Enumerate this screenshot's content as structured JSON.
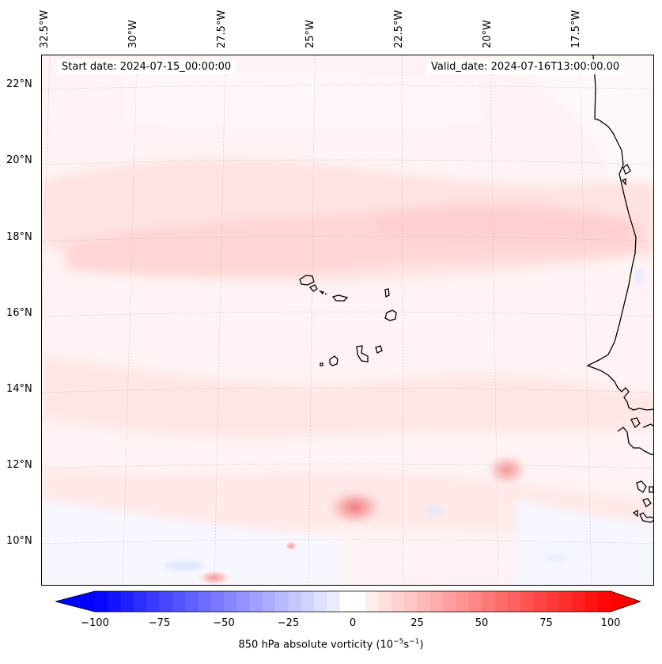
{
  "map": {
    "start_date": "Start date: 2024-07-15_00:00:00",
    "valid_date": "Valid_date: 2024-07-16T13:00:00.00",
    "lon_labels": [
      "32.5°W",
      "30°W",
      "27.5°W",
      "25°W",
      "22.5°W",
      "20°W",
      "17.5°W"
    ],
    "lat_labels": [
      "22°N",
      "20°N",
      "18°N",
      "16°N",
      "14°N",
      "12°N",
      "10°N"
    ]
  },
  "colorbar": {
    "ticks": [
      "−100",
      "−75",
      "−50",
      "−25",
      "0",
      "25",
      "50",
      "75",
      "100"
    ],
    "min": -100,
    "max": 100,
    "label_main": "850 hPa absolute vorticity (10",
    "label_exp1": "−5",
    "label_mid": "s",
    "label_exp2": "−1",
    "label_end": ")"
  },
  "colors": {
    "negative": "#0000ff",
    "neutral": "#ffffff",
    "positive": "#ff0000",
    "coast": "#000000"
  }
}
